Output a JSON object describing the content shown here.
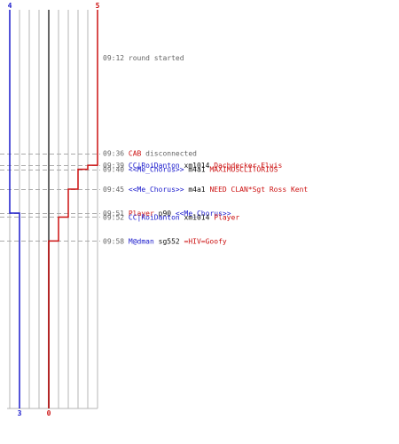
{
  "chart_data": {
    "type": "line",
    "title": "",
    "colors": {
      "blue": "#1a1acc",
      "red": "#cc1111",
      "gray": "#666666",
      "grid": "#b4b4b4",
      "guide": "#aaaaaa"
    },
    "team_blue": {
      "start_score": "4",
      "end_score": "3"
    },
    "team_red": {
      "start_score": "5",
      "end_score": "0"
    },
    "series": [
      {
        "color": "blue",
        "points": [
          [
            0,
            4
          ],
          [
            9.51,
            4
          ],
          [
            9.51,
            3
          ],
          [
            10,
            3
          ]
        ]
      },
      {
        "color": "red",
        "points": [
          [
            0,
            5
          ],
          [
            9.39,
            5
          ],
          [
            9.39,
            4
          ],
          [
            9.4,
            4
          ],
          [
            9.4,
            3
          ],
          [
            9.45,
            3
          ],
          [
            9.45,
            2
          ],
          [
            9.52,
            2
          ],
          [
            9.52,
            1
          ],
          [
            9.58,
            1
          ],
          [
            9.58,
            0
          ],
          [
            10,
            0
          ]
        ]
      }
    ],
    "events": [
      {
        "y": 9.12,
        "time": "09:12",
        "parts": [
          {
            "text": "round started",
            "color": "gray"
          }
        ]
      },
      {
        "y": 9.36,
        "time": "09:36",
        "parts": [
          {
            "text": "CAB",
            "color": "red"
          },
          {
            "text": " disconnected",
            "color": "gray"
          }
        ]
      },
      {
        "y": 9.39,
        "time": "09:39",
        "parts": [
          {
            "text": "CC|RoiDanton",
            "color": "blue"
          },
          {
            "text": " xm1014 ",
            "color": "black"
          },
          {
            "text": "Dachdecker-Elvis",
            "color": "red"
          }
        ]
      },
      {
        "y": 9.4,
        "time": "09:40",
        "parts": [
          {
            "text": "<<Me_Chorus>>",
            "color": "blue"
          },
          {
            "text": " m4a1 ",
            "color": "black"
          },
          {
            "text": "MAXIMUSCLITORIUS",
            "color": "red"
          }
        ]
      },
      {
        "y": 9.45,
        "time": "09:45",
        "parts": [
          {
            "text": "<<Me_Chorus>>",
            "color": "blue"
          },
          {
            "text": " m4a1 ",
            "color": "black"
          },
          {
            "text": "NEED CLAN*Sgt Ross Kent",
            "color": "red"
          }
        ]
      },
      {
        "y": 9.51,
        "time": "09:51",
        "parts": [
          {
            "text": "Player",
            "color": "red"
          },
          {
            "text": " p90 ",
            "color": "black"
          },
          {
            "text": "<<Me_Chorus>>",
            "color": "blue"
          }
        ]
      },
      {
        "y": 9.52,
        "time": "09:52",
        "parts": [
          {
            "text": "CC|RoiDanton",
            "color": "blue"
          },
          {
            "text": " xm1014 ",
            "color": "black"
          },
          {
            "text": "Player",
            "color": "red"
          }
        ]
      },
      {
        "y": 9.58,
        "time": "09:58",
        "parts": [
          {
            "text": "M@dman",
            "color": "blue"
          },
          {
            "text": " sg552 ",
            "color": "black"
          },
          {
            "text": "=HIV=Goofy",
            "color": "red"
          }
        ]
      }
    ]
  }
}
